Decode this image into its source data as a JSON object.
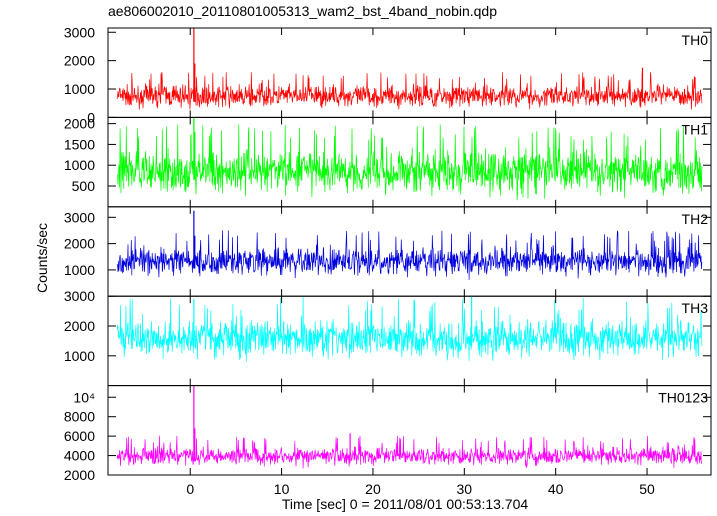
{
  "title": "ae806002010_20110801005313_wam2_bst_4band_nobin.qdp",
  "ylabel": "Counts/sec",
  "xlabel": "Time [sec] 0 = 2011/08/01 00:53:13.704",
  "chart_data": {
    "type": "line",
    "title": "ae806002010_20110801005313_wam2_bst_4band_nobin.qdp",
    "xlabel": "Time [sec] 0 = 2011/08/01 00:53:13.704",
    "ylabel": "Counts/sec",
    "xlim": [
      -9,
      57
    ],
    "x_ticks": [
      "0",
      "10",
      "20",
      "30",
      "40",
      "50"
    ],
    "x_tick_values": [
      0,
      10,
      20,
      30,
      40,
      50
    ],
    "data_range_x": [
      -8,
      56
    ],
    "grid": false,
    "panels": [
      {
        "name": "TH0",
        "color": "#ff0000",
        "ylim": [
          0,
          3150
        ],
        "y_ticks": [
          "0",
          "1000",
          "2000",
          "3000"
        ],
        "y_tick_values": [
          0,
          1000,
          2000,
          3000
        ],
        "baseline": 550,
        "noise_low": 200,
        "noise_high": 1300,
        "peaks": [
          {
            "x": 0.4,
            "y": 3150
          },
          {
            "x": 0.5,
            "y": 1900
          },
          {
            "x": 49.5,
            "y": 1750
          }
        ]
      },
      {
        "name": "TH1",
        "color": "#00ff00",
        "ylim": [
          0,
          2150
        ],
        "y_ticks": [
          "500",
          "1000",
          "1500",
          "2000"
        ],
        "y_tick_values": [
          500,
          1000,
          1500,
          2000
        ],
        "baseline": 650,
        "noise_low": 100,
        "noise_high": 1600,
        "peaks": [
          {
            "x": 0.4,
            "y": 2150
          },
          {
            "x": 0.5,
            "y": 1800
          }
        ]
      },
      {
        "name": "TH2",
        "color": "#0000dd",
        "ylim": [
          0,
          3400
        ],
        "y_ticks": [
          "1000",
          "2000",
          "3000"
        ],
        "y_tick_values": [
          1000,
          2000,
          3000
        ],
        "baseline": 1050,
        "noise_low": 550,
        "noise_high": 2100,
        "peaks": [
          {
            "x": 0.4,
            "y": 3250
          },
          {
            "x": 0.5,
            "y": 2300
          }
        ]
      },
      {
        "name": "TH3",
        "color": "#00ffff",
        "ylim": [
          0,
          3000
        ],
        "y_ticks": [
          "1000",
          "2000",
          "3000"
        ],
        "y_tick_values": [
          1000,
          2000,
          3000
        ],
        "baseline": 1300,
        "noise_low": 700,
        "noise_high": 2500,
        "peaks": [
          {
            "x": 0.4,
            "y": 2900
          },
          {
            "x": 30.8,
            "y": 3000
          }
        ]
      },
      {
        "name": "TH0123",
        "color": "#ff00ff",
        "ylim": [
          2000,
          11200
        ],
        "y_ticks": [
          "2000",
          "4000",
          "6000",
          "8000",
          "10⁴"
        ],
        "y_tick_values": [
          2000,
          4000,
          6000,
          8000,
          10000
        ],
        "baseline": 3400,
        "noise_low": 2600,
        "noise_high": 5300,
        "peaks": [
          {
            "x": 0.4,
            "y": 11200
          },
          {
            "x": 0.5,
            "y": 6800
          },
          {
            "x": 17.5,
            "y": 6300
          }
        ]
      }
    ]
  }
}
